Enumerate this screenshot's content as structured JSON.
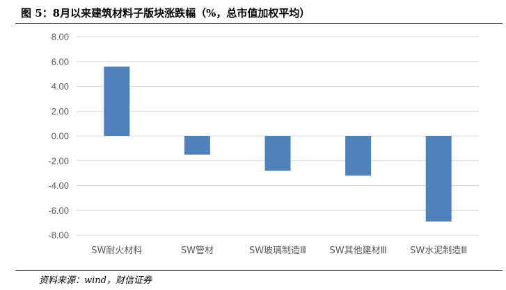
{
  "title": "图 5：8月以来建筑材料子版块涨跌幅（%，总市值加权平均）",
  "source": "资料来源：wind，财信证券",
  "colors": {
    "bar": "#4f81bd",
    "grid": "#d9d9d9",
    "axis_text": "#595959"
  },
  "chart_data": {
    "type": "bar",
    "categories": [
      "SW耐火材料",
      "SW管材",
      "SW玻璃制造Ⅲ",
      "SW其他建材Ⅲ",
      "SW水泥制造Ⅲ"
    ],
    "values": [
      5.6,
      -1.5,
      -2.8,
      -3.2,
      -6.9
    ],
    "ylim": [
      -8,
      8
    ],
    "yticks": [
      "8.00",
      "6.00",
      "4.00",
      "2.00",
      "0.00",
      "-2.00",
      "-4.00",
      "-6.00",
      "-8.00"
    ],
    "grid": true
  }
}
